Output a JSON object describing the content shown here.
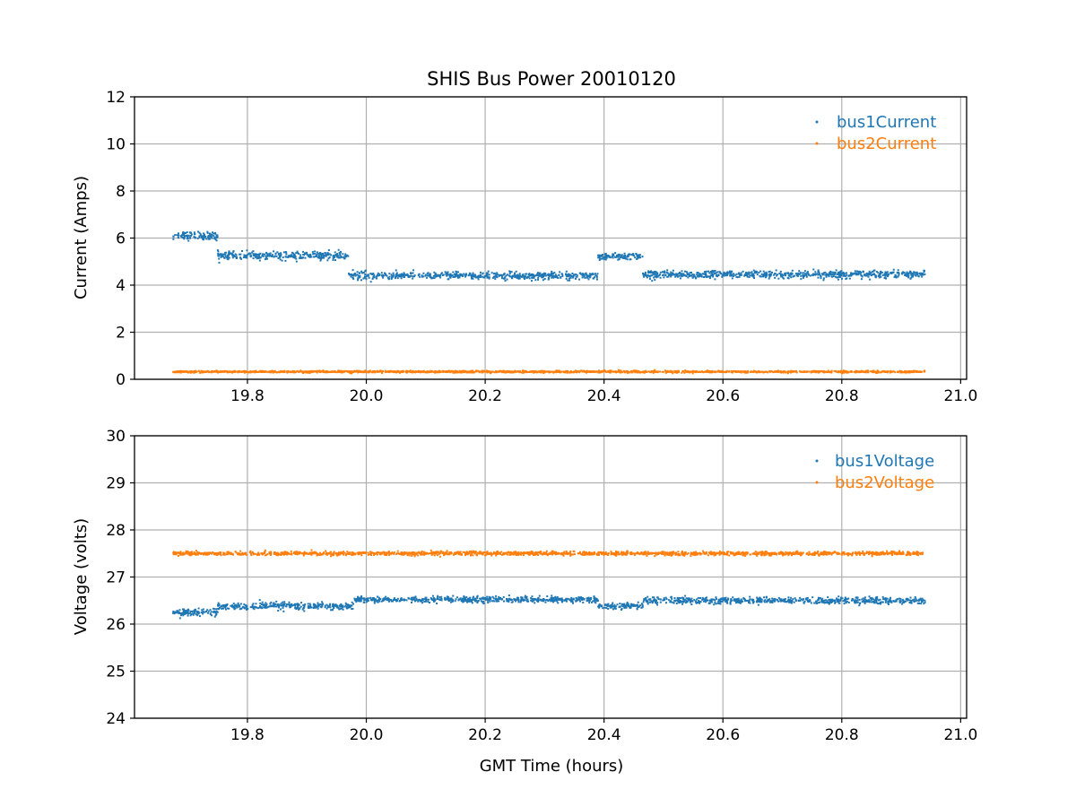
{
  "chart_data": [
    {
      "type": "scatter",
      "title": "SHIS Bus Power 20010120",
      "xlabel": "",
      "ylabel": "Current (Amps)",
      "xlim": [
        19.61,
        21.01
      ],
      "ylim": [
        0,
        12
      ],
      "xticks": [
        19.8,
        20.0,
        20.2,
        20.4,
        20.6,
        20.8,
        21.0
      ],
      "xtick_labels": [
        "19.8",
        "20.0",
        "20.2",
        "20.4",
        "20.6",
        "20.8",
        "21.0"
      ],
      "yticks": [
        0,
        2,
        4,
        6,
        8,
        10,
        12
      ],
      "ytick_labels": [
        "0",
        "2",
        "4",
        "6",
        "8",
        "10",
        "12"
      ],
      "grid": true,
      "legend_position": "top-right",
      "series": [
        {
          "name": "bus1Current",
          "color": "#1f77b4",
          "segments": [
            {
              "x_start": 19.675,
              "x_end": 19.75,
              "mean": 6.1,
              "spread": 0.18
            },
            {
              "x_start": 19.75,
              "x_end": 19.97,
              "mean": 5.25,
              "spread": 0.17
            },
            {
              "x_start": 19.97,
              "x_end": 20.01,
              "mean": 4.4,
              "spread": 0.2
            },
            {
              "x_start": 20.01,
              "x_end": 20.39,
              "mean": 4.4,
              "spread": 0.15
            },
            {
              "x_start": 20.39,
              "x_end": 20.465,
              "mean": 5.2,
              "spread": 0.15
            },
            {
              "x_start": 20.465,
              "x_end": 20.94,
              "mean": 4.45,
              "spread": 0.16
            }
          ]
        },
        {
          "name": "bus2Current",
          "color": "#ff7f0e",
          "segments": [
            {
              "x_start": 19.675,
              "x_end": 20.94,
              "mean": 0.32,
              "spread": 0.04
            }
          ]
        }
      ]
    },
    {
      "type": "scatter",
      "title": "",
      "xlabel": "GMT Time (hours)",
      "ylabel": "Voltage (volts)",
      "xlim": [
        19.61,
        21.01
      ],
      "ylim": [
        24,
        30
      ],
      "xticks": [
        19.8,
        20.0,
        20.2,
        20.4,
        20.6,
        20.8,
        21.0
      ],
      "xtick_labels": [
        "19.8",
        "20.0",
        "20.2",
        "20.4",
        "20.6",
        "20.8",
        "21.0"
      ],
      "yticks": [
        24,
        25,
        26,
        27,
        28,
        29,
        30
      ],
      "ytick_labels": [
        "24",
        "25",
        "26",
        "27",
        "28",
        "29",
        "30"
      ],
      "grid": true,
      "legend_position": "top-right",
      "series": [
        {
          "name": "bus1Voltage",
          "color": "#1f77b4",
          "segments": [
            {
              "x_start": 19.675,
              "x_end": 19.75,
              "mean": 26.25,
              "spread": 0.08
            },
            {
              "x_start": 19.75,
              "x_end": 19.98,
              "mean": 26.38,
              "spread": 0.08
            },
            {
              "x_start": 19.98,
              "x_end": 20.39,
              "mean": 26.52,
              "spread": 0.06
            },
            {
              "x_start": 20.39,
              "x_end": 20.465,
              "mean": 26.38,
              "spread": 0.06
            },
            {
              "x_start": 20.465,
              "x_end": 20.94,
              "mean": 26.5,
              "spread": 0.07
            }
          ]
        },
        {
          "name": "bus2Voltage",
          "color": "#ff7f0e",
          "segments": [
            {
              "x_start": 19.675,
              "x_end": 20.94,
              "mean": 27.5,
              "spread": 0.04
            }
          ]
        }
      ]
    }
  ]
}
